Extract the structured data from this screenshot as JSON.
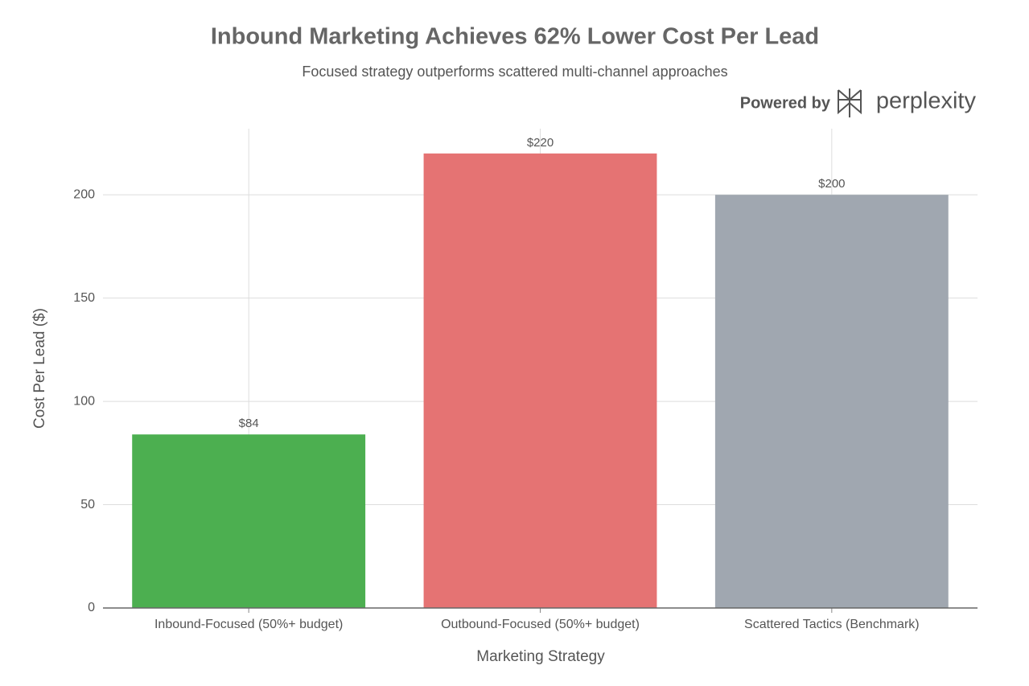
{
  "chart_data": {
    "type": "bar",
    "title": "Inbound Marketing Achieves 62% Lower Cost Per Lead",
    "subtitle": "Focused strategy outperforms scattered multi-channel approaches",
    "watermark": {
      "prefix": "Powered by",
      "brand": "perplexity"
    },
    "x_label": "Marketing Strategy",
    "y_label": "Cost Per Lead ($)",
    "categories": [
      "Inbound-Focused (50%+ budget)",
      "Outbound-Focused (50%+ budget)",
      "Scattered Tactics (Benchmark)"
    ],
    "values": [
      84,
      220,
      200
    ],
    "value_labels": [
      "$84",
      "$220",
      "$200"
    ],
    "colors": [
      "#4caf50",
      "#e57373",
      "#a0a7b0"
    ],
    "ylim": [
      0,
      232
    ],
    "yticks": [
      0,
      50,
      100,
      150,
      200
    ],
    "grid": true
  }
}
